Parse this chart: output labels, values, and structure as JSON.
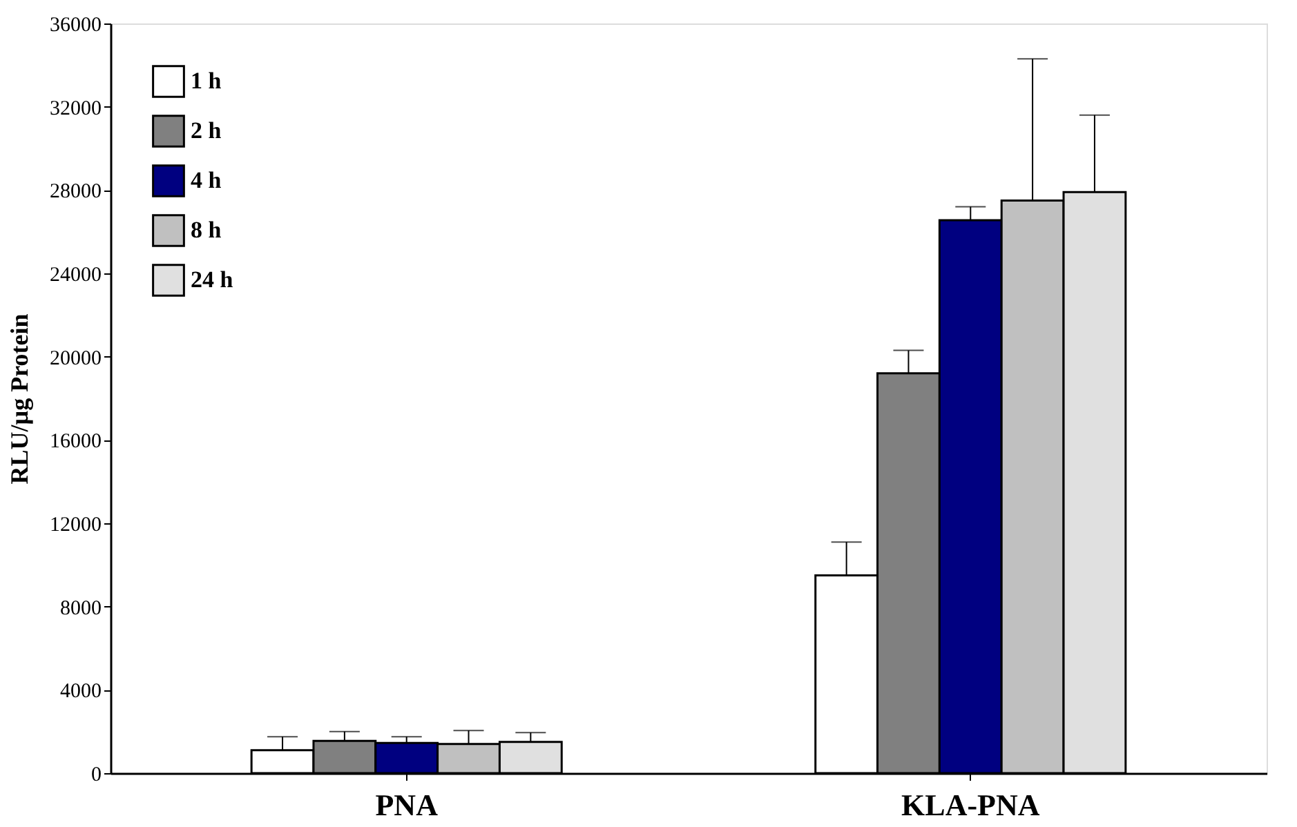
{
  "chart_data": {
    "type": "bar",
    "ylabel": "RLU/µg Protein",
    "categories": [
      "PNA",
      "KLA-PNA"
    ],
    "series": [
      {
        "name": "1 h",
        "color": "#ffffff",
        "values": [
          1100,
          9500
        ],
        "errors": [
          [
            1100,
            1750
          ],
          [
            9500,
            11100
          ]
        ]
      },
      {
        "name": "2 h",
        "color": "#808080",
        "values": [
          1550,
          19200
        ],
        "errors": [
          [
            1550,
            2000
          ],
          [
            19200,
            20300
          ]
        ]
      },
      {
        "name": "4 h",
        "color": "#000080",
        "values": [
          1450,
          26550
        ],
        "errors": [
          [
            1450,
            1750
          ],
          [
            26550,
            27200
          ]
        ]
      },
      {
        "name": "8 h",
        "color": "#c0c0c0",
        "values": [
          1400,
          27500
        ],
        "errors": [
          [
            1400,
            2050
          ],
          [
            27500,
            34300
          ]
        ]
      },
      {
        "name": "24 h",
        "color": "#e0e0e0",
        "values": [
          1500,
          27900
        ],
        "errors": [
          [
            1500,
            1950
          ],
          [
            27900,
            31600
          ]
        ]
      }
    ],
    "ylim": [
      0,
      36000
    ],
    "yticks": [
      0,
      4000,
      8000,
      12000,
      16000,
      20000,
      24000,
      28000,
      32000,
      36000
    ],
    "grid": false,
    "legend": "top left"
  }
}
